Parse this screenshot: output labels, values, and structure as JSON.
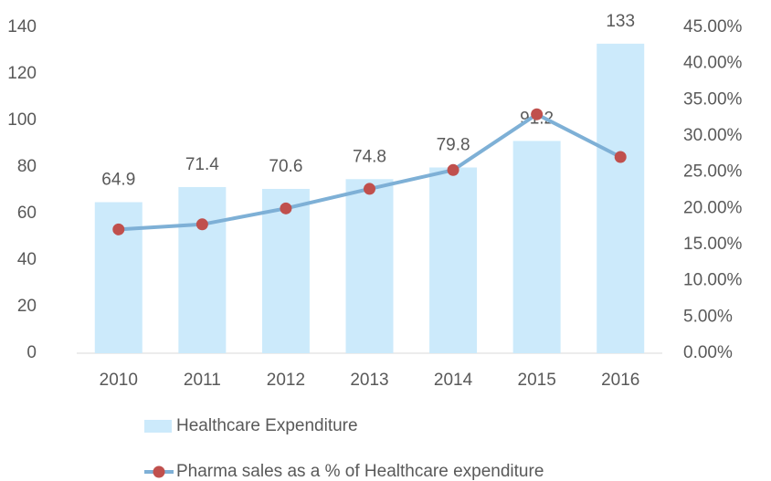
{
  "chart_data": {
    "type": "bar_line",
    "categories": [
      "2010",
      "2011",
      "2012",
      "2013",
      "2014",
      "2015",
      "2016"
    ],
    "series": [
      {
        "name": "Healthcare Expenditure",
        "color": "#cceafb",
        "type": "bar",
        "values": [
          64.9,
          71.4,
          70.6,
          74.8,
          79.8,
          91.2,
          133
        ]
      },
      {
        "name": "Pharma sales as a % of Healthcare expenditure",
        "color": "#7eb0d6",
        "marker_color": "#c0504d",
        "type": "line",
        "axis": "y2",
        "values": [
          17.1,
          17.8,
          20.0,
          22.7,
          25.3,
          33.0,
          27.1
        ]
      }
    ],
    "ylim": [
      0,
      140
    ],
    "yticks": [
      0,
      20,
      40,
      60,
      80,
      100,
      120,
      140
    ],
    "y2lim": [
      0,
      45
    ],
    "y2ticks": [
      {
        "value": 0,
        "label": "0.00%"
      },
      {
        "value": 5,
        "label": "5.00%"
      },
      {
        "value": 10,
        "label": "10.00%"
      },
      {
        "value": 15,
        "label": "15.00%"
      },
      {
        "value": 20,
        "label": "20.00%"
      },
      {
        "value": 25,
        "label": "25.00%"
      },
      {
        "value": 30,
        "label": "30.00%"
      },
      {
        "value": 35,
        "label": "35.00%"
      },
      {
        "value": 40,
        "label": "40.00%"
      },
      {
        "value": 45,
        "label": "45.00%"
      }
    ],
    "grid": false,
    "legend": "bottom"
  }
}
